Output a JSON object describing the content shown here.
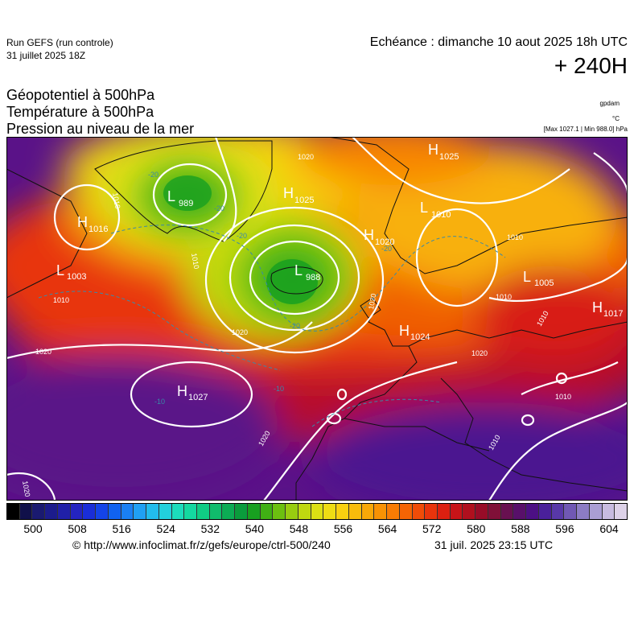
{
  "header": {
    "run_title": "Run GEFS (run controle)",
    "run_date": "31 juillet 2025 18Z",
    "echeance": "Echéance : dimanche 10 aout 2025 18h UTC",
    "lead_time": "+ 240H"
  },
  "parameters": {
    "line1": "Géopotentiel à 500hPa",
    "line2": "Température à 500hPa",
    "line3": "Pression au niveau de la mer",
    "unit_geopotential": "gpdam",
    "unit_temperature": "°C",
    "unit_pressure": "[Max 1027.1 | Min 988.0] hPa"
  },
  "map_labels": {
    "pressure_centers": [
      {
        "type": "L",
        "value": "989",
        "name": "low-greenland-west"
      },
      {
        "type": "H",
        "value": "1016",
        "name": "high-labrador"
      },
      {
        "type": "L",
        "value": "1003",
        "name": "low-newfoundland"
      },
      {
        "type": "H",
        "value": "1025",
        "name": "high-greenland"
      },
      {
        "type": "L",
        "value": "988",
        "name": "low-iceland"
      },
      {
        "type": "H",
        "value": "1020",
        "name": "high-norwegian-sea"
      },
      {
        "type": "L",
        "value": "1010",
        "name": "low-scandinavia"
      },
      {
        "type": "H",
        "value": "1025",
        "name": "high-arctic"
      },
      {
        "type": "L",
        "value": "1005",
        "name": "low-russia"
      },
      {
        "type": "H",
        "value": "1017",
        "name": "high-east"
      },
      {
        "type": "H",
        "value": "1024",
        "name": "high-central-europe"
      },
      {
        "type": "H",
        "value": "1027",
        "name": "high-azores"
      }
    ],
    "isobar_labels": [
      "1010",
      "1020",
      "1010",
      "1010",
      "1020",
      "1020",
      "1010",
      "1020",
      "1020",
      "1010",
      "1010",
      "1010",
      "1020",
      "1020",
      "1010"
    ],
    "isotherm_labels": [
      "-20",
      "-20",
      "-20",
      "-20",
      "-20",
      "-10",
      "-10"
    ]
  },
  "colorbar": {
    "colors": [
      "#000000",
      "#10104a",
      "#1a1a70",
      "#1c1c8c",
      "#2020a8",
      "#2424c0",
      "#1a2ed8",
      "#1444e8",
      "#1062f0",
      "#1a80f4",
      "#20a0f4",
      "#22bcec",
      "#22d0dc",
      "#1cdcbc",
      "#14d8a0",
      "#10cc84",
      "#10bc6c",
      "#0cac54",
      "#0a9c3c",
      "#18a020",
      "#40b014",
      "#6cc010",
      "#98cc10",
      "#c0d810",
      "#dce014",
      "#eedc14",
      "#f8d010",
      "#f8bc0c",
      "#f8a808",
      "#f89204",
      "#f87c04",
      "#f46404",
      "#f04c08",
      "#e8340c",
      "#dc2010",
      "#c81418",
      "#b0101e",
      "#980c28",
      "#801038",
      "#681050",
      "#58106a",
      "#4c1084",
      "#4a209a",
      "#5838a8",
      "#7058b4",
      "#8c7cc4",
      "#aa9ed4",
      "#c8bce0",
      "#ddd2e8"
    ],
    "tick_labels": [
      "500",
      "508",
      "516",
      "524",
      "532",
      "540",
      "548",
      "556",
      "564",
      "572",
      "580",
      "588",
      "596",
      "604"
    ]
  },
  "footer": {
    "copyright": "© http://www.infoclimat.fr/z/gefs/europe/ctrl-500/240",
    "timestamp": "31 juil. 2025 23:15 UTC"
  }
}
